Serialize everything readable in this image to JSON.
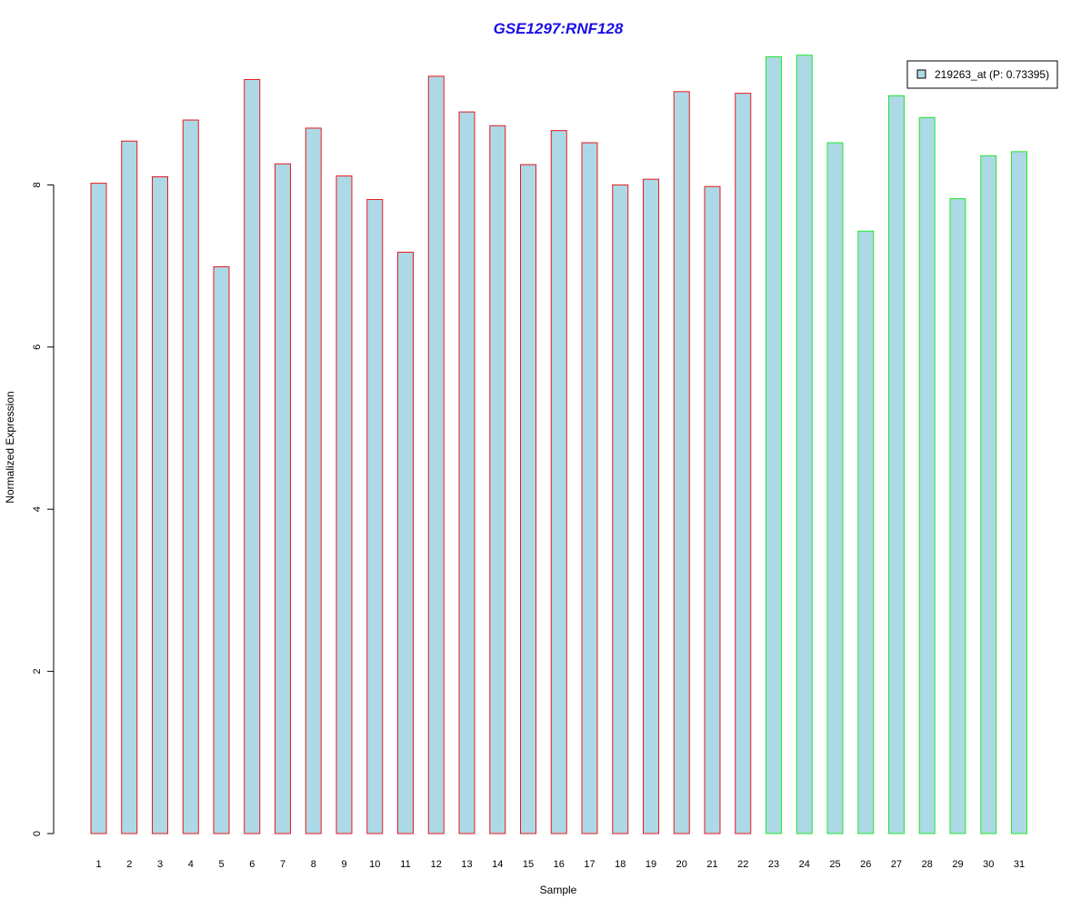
{
  "chart_data": {
    "type": "bar",
    "title": "GSE1297:RNF128",
    "xlabel": "Sample",
    "ylabel": "Normalized Expression",
    "categories": [
      "1",
      "2",
      "3",
      "4",
      "5",
      "6",
      "7",
      "8",
      "9",
      "10",
      "11",
      "12",
      "13",
      "14",
      "15",
      "16",
      "17",
      "18",
      "19",
      "20",
      "21",
      "22",
      "23",
      "24",
      "25",
      "26",
      "27",
      "28",
      "29",
      "30",
      "31"
    ],
    "series": [
      {
        "name": "219263_at (P: 0.73395)",
        "values": [
          8.02,
          8.54,
          8.1,
          8.8,
          6.99,
          9.3,
          8.26,
          8.7,
          8.11,
          7.82,
          7.17,
          9.34,
          8.9,
          8.73,
          8.25,
          8.67,
          8.52,
          8.0,
          8.07,
          9.15,
          7.98,
          9.13,
          9.58,
          9.6,
          8.52,
          7.43,
          9.1,
          8.83,
          7.83,
          8.36,
          8.41
        ]
      }
    ],
    "groups": [
      {
        "samples": [
          1,
          22
        ],
        "border_color": "#e8191e"
      },
      {
        "samples": [
          23,
          31
        ],
        "border_color": "#21e82a"
      }
    ],
    "yticks": [
      0,
      2,
      4,
      6,
      8
    ],
    "ylim": [
      0,
      9.6
    ],
    "bar_fill": "#add8e6",
    "title_color": "#1a0ee6",
    "legend_position": "top-right",
    "grid": false
  }
}
